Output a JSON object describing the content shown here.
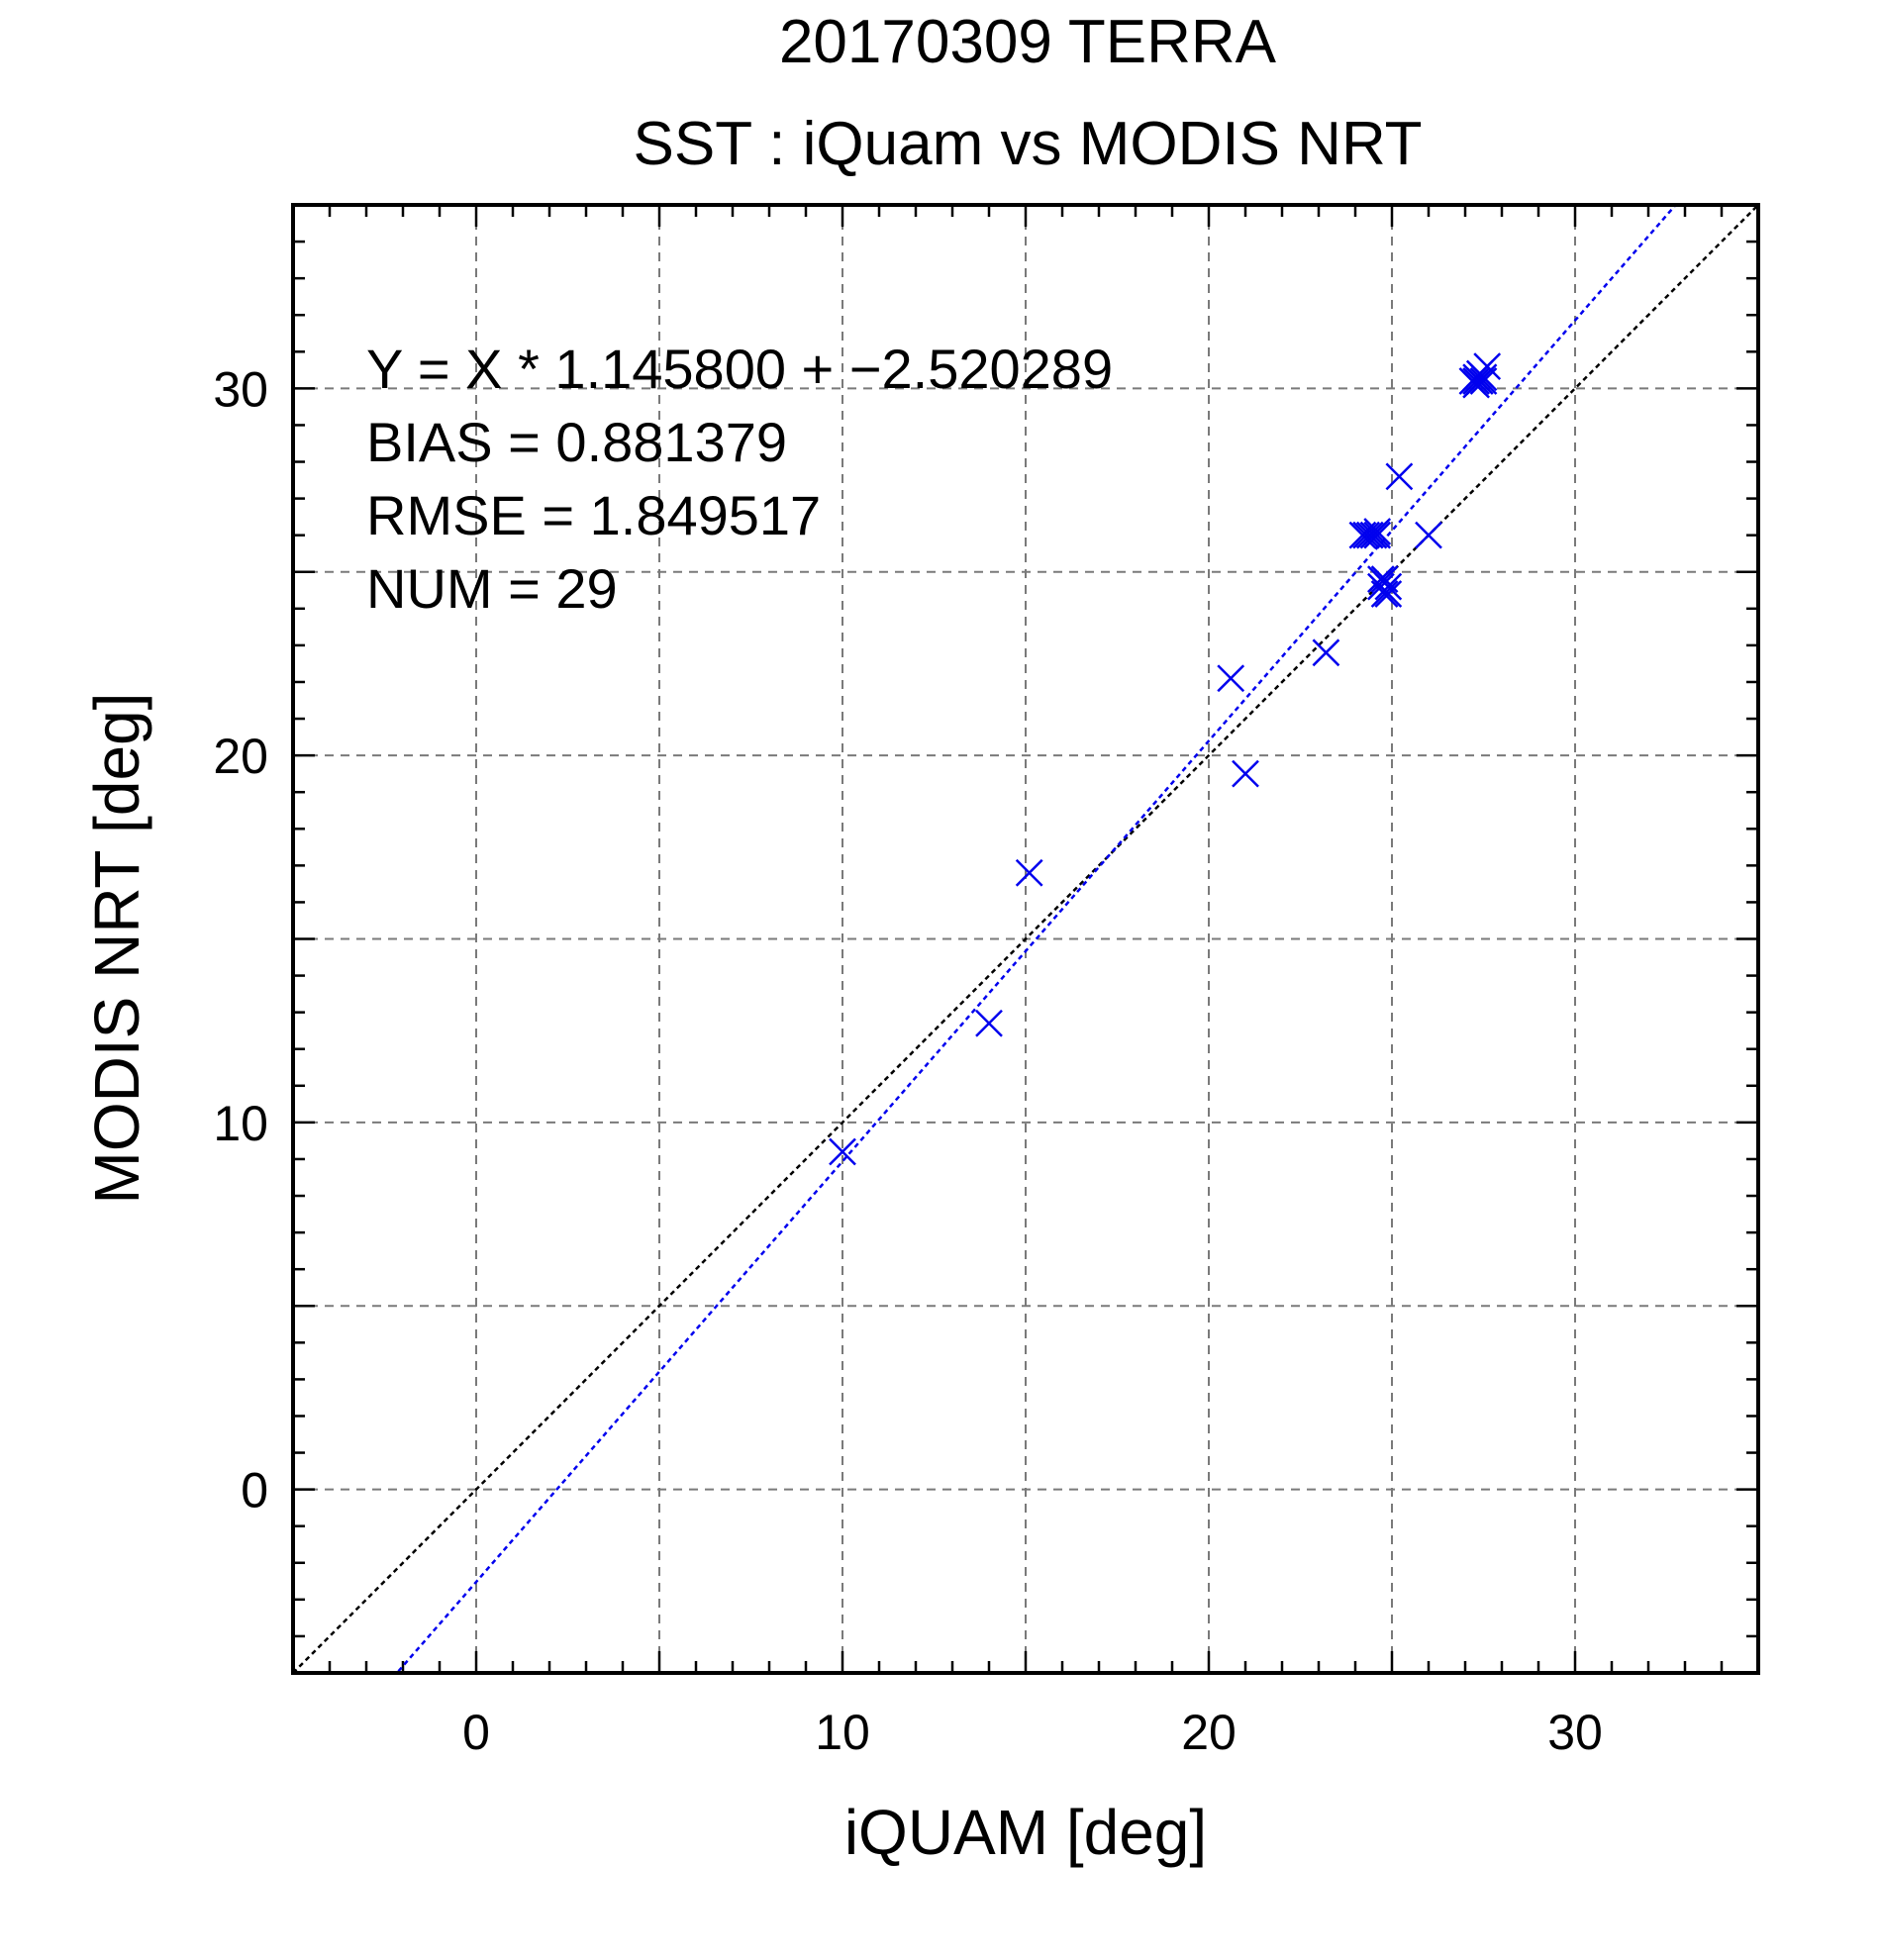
{
  "chart_data": {
    "type": "scatter",
    "title": "20170309 TERRA",
    "subtitle": "SST : iQuam vs MODIS NRT",
    "xlabel": "iQUAM [deg]",
    "ylabel": "MODIS NRT [deg]",
    "xlim": [
      -5,
      35
    ],
    "ylim": [
      -5,
      35
    ],
    "x_ticks": [
      0,
      10,
      20,
      30
    ],
    "y_ticks": [
      0,
      10,
      20,
      30
    ],
    "x_tick_labels": [
      "0",
      "10",
      "20",
      "30"
    ],
    "y_tick_labels": [
      "0",
      "10",
      "20",
      "30"
    ],
    "minor_tick_step": 1,
    "grid": true,
    "grid_step": 5,
    "marker": "x",
    "marker_color": "#0000ee",
    "stats": {
      "equation": "Y = X * 1.145800 + −2.520289",
      "bias": "BIAS = 0.881379",
      "rmse": "RMSE = 1.849517",
      "num": "NUM = 29"
    },
    "fit_line": {
      "slope": 1.1458,
      "intercept": -2.520289,
      "color": "#0000ee",
      "style": "dotted"
    },
    "identity_line": {
      "slope": 1,
      "intercept": 0,
      "color": "#000000",
      "style": "dotted"
    },
    "series": [
      {
        "x": [
          10.0,
          14.0,
          15.1,
          20.6,
          21.0,
          23.2,
          24.2,
          24.3,
          24.4,
          24.5,
          24.6,
          24.6,
          24.7,
          24.8,
          24.9,
          24.9,
          24.8,
          24.7,
          25.2,
          26.0,
          27.2,
          27.3,
          27.3,
          27.4,
          27.5,
          27.3,
          27.4,
          27.5,
          27.6
        ],
        "y": [
          9.2,
          12.7,
          16.8,
          22.1,
          19.5,
          22.8,
          26.0,
          26.0,
          26.0,
          26.0,
          26.0,
          26.1,
          24.8,
          24.4,
          24.6,
          24.4,
          24.8,
          24.6,
          27.6,
          26.0,
          30.2,
          30.3,
          30.2,
          30.2,
          30.3,
          30.1,
          30.4,
          30.2,
          30.6
        ]
      }
    ]
  }
}
